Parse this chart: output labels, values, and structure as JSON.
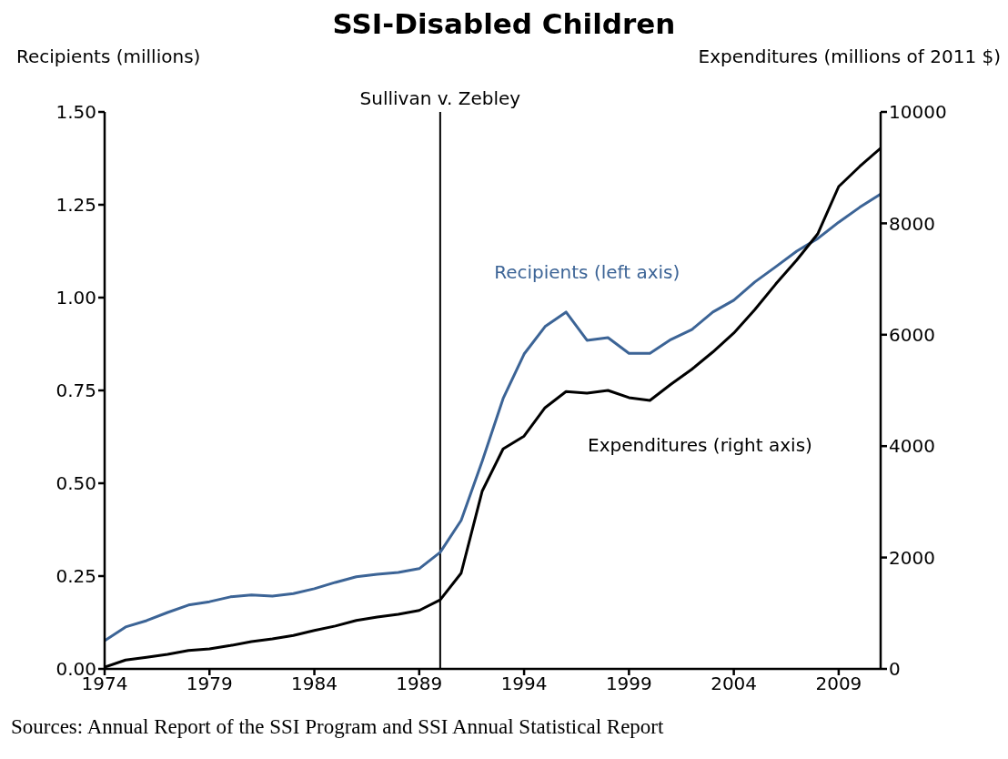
{
  "chart_data": {
    "type": "line",
    "title": "SSI-Disabled Children",
    "ylabel": "Recipients (millions)",
    "y2label": "Expenditures (millions of 2011 $)",
    "x": [
      1974,
      1975,
      1976,
      1977,
      1978,
      1979,
      1980,
      1981,
      1982,
      1983,
      1984,
      1985,
      1986,
      1987,
      1988,
      1989,
      1990,
      1991,
      1992,
      1993,
      1994,
      1995,
      1996,
      1997,
      1998,
      1999,
      2000,
      2001,
      2002,
      2003,
      2004,
      2005,
      2006,
      2007,
      2008,
      2009,
      2010,
      2011
    ],
    "series": [
      {
        "name": "Recipients (left axis)",
        "color": "#3c6496",
        "values": [
          0.076,
          0.113,
          0.13,
          0.152,
          0.172,
          0.181,
          0.194,
          0.199,
          0.196,
          0.203,
          0.216,
          0.233,
          0.248,
          0.255,
          0.26,
          0.27,
          0.314,
          0.4,
          0.559,
          0.728,
          0.848,
          0.922,
          0.961,
          0.885,
          0.892,
          0.85,
          0.85,
          0.887,
          0.914,
          0.961,
          0.993,
          1.042,
          1.083,
          1.125,
          1.159,
          1.203,
          1.243,
          1.279
        ]
      },
      {
        "name": "Expenditures (right axis)",
        "color": "#000000",
        "axis": "y2",
        "values": [
          30,
          160,
          210,
          260,
          330,
          360,
          420,
          490,
          540,
          600,
          690,
          770,
          870,
          930,
          980,
          1050,
          1240,
          1720,
          3190,
          3950,
          4180,
          4690,
          4980,
          4950,
          5000,
          4870,
          4820,
          5110,
          5380,
          5690,
          6030,
          6450,
          6910,
          7340,
          7810,
          8660,
          9020,
          9350
        ]
      }
    ],
    "xlim": [
      1974,
      2011
    ],
    "xticks": [
      1974,
      1979,
      1984,
      1989,
      1994,
      1999,
      2004,
      2009
    ],
    "ylim": [
      0,
      1.5
    ],
    "yticks": [
      {
        "value": 0,
        "label": "0.00"
      },
      {
        "value": 0.25,
        "label": "0.25"
      },
      {
        "value": 0.5,
        "label": "0.50"
      },
      {
        "value": 0.75,
        "label": "0.75"
      },
      {
        "value": 1,
        "label": "1.00"
      },
      {
        "value": 1.25,
        "label": "1.25"
      },
      {
        "value": 1.5,
        "label": "1.50"
      }
    ],
    "y2lim": [
      0,
      10000
    ],
    "y2ticks": [
      0,
      2000,
      4000,
      6000,
      8000,
      10000
    ],
    "ref_lines": [
      {
        "axis": "x",
        "value": 1990,
        "label": "Sullivan v. Zebley",
        "color": "#000000"
      }
    ],
    "annotations": [
      "Sources: Annual Report of the SSI Program and SSI Annual Statistical Report"
    ],
    "marker": "none",
    "line_style": "solid"
  }
}
